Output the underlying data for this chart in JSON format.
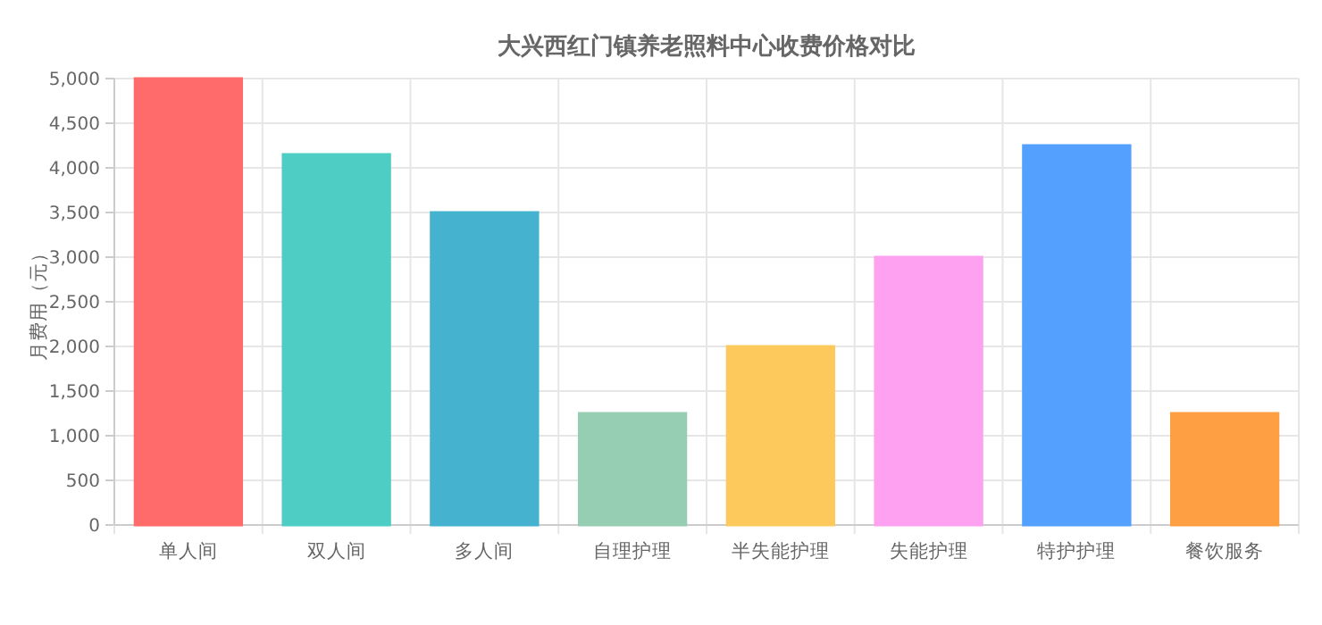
{
  "chart_data": {
    "type": "bar",
    "title": "大兴西红门镇养老照料中心收费价格对比",
    "ylabel": "月费用（元）",
    "categories": [
      "单人间",
      "双人间",
      "多人间",
      "自理护理",
      "半失能护理",
      "失能护理",
      "特护护理",
      "餐饮服务"
    ],
    "values": [
      5000,
      4150,
      3500,
      1250,
      2000,
      3000,
      4250,
      1250
    ],
    "colors": [
      "#ff6b6b",
      "#4ecdc4",
      "#45b3d0",
      "#96ceb4",
      "#fec95c",
      "#fda1f0",
      "#54a0ff",
      "#ff9f43"
    ],
    "ylim": [
      0,
      5000
    ],
    "yticks": [
      {
        "value": 0,
        "label": "0"
      },
      {
        "value": 500,
        "label": "500"
      },
      {
        "value": 1000,
        "label": "1,000"
      },
      {
        "value": 1500,
        "label": "1,500"
      },
      {
        "value": 2000,
        "label": "2,000"
      },
      {
        "value": 2500,
        "label": "2,500"
      },
      {
        "value": 3000,
        "label": "3,000"
      },
      {
        "value": 3500,
        "label": "3,500"
      },
      {
        "value": 4000,
        "label": "4,000"
      },
      {
        "value": 4500,
        "label": "4,500"
      },
      {
        "value": 5000,
        "label": "5,000"
      }
    ],
    "grid": true
  }
}
